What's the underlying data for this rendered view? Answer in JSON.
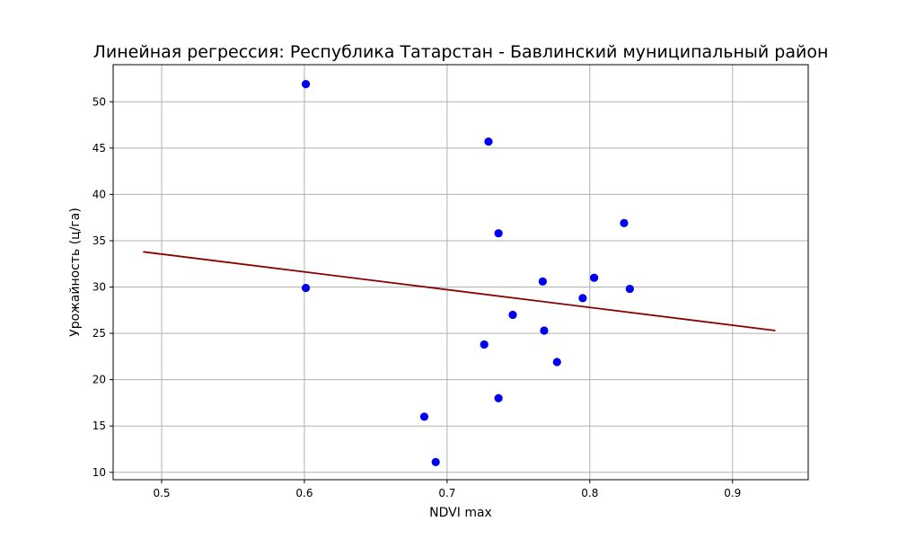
{
  "chart_data": {
    "type": "scatter",
    "title": "Линейная регрессия: Республика Татарстан - Бавлинский муниципальный район",
    "xlabel": "NDVI max",
    "ylabel": "Урожайность (ц/га)",
    "xlim": [
      0.466,
      0.953
    ],
    "ylim": [
      9.2,
      54.0
    ],
    "x_ticks": [
      0.5,
      0.6,
      0.7,
      0.8,
      0.9
    ],
    "x_tick_labels": [
      "0.5",
      "0.6",
      "0.7",
      "0.8",
      "0.9"
    ],
    "y_ticks": [
      10,
      15,
      20,
      25,
      30,
      35,
      40,
      45,
      50
    ],
    "y_tick_labels": [
      "10",
      "15",
      "20",
      "25",
      "30",
      "35",
      "40",
      "45",
      "50"
    ],
    "grid": true,
    "series": [
      {
        "type": "scatter",
        "color": "#0000ee",
        "points": [
          {
            "x": 0.601,
            "y": 51.9
          },
          {
            "x": 0.601,
            "y": 29.9
          },
          {
            "x": 0.729,
            "y": 45.7
          },
          {
            "x": 0.736,
            "y": 35.8
          },
          {
            "x": 0.824,
            "y": 36.9
          },
          {
            "x": 0.767,
            "y": 30.6
          },
          {
            "x": 0.803,
            "y": 31.0
          },
          {
            "x": 0.795,
            "y": 28.8
          },
          {
            "x": 0.828,
            "y": 29.8
          },
          {
            "x": 0.746,
            "y": 27.0
          },
          {
            "x": 0.768,
            "y": 25.3
          },
          {
            "x": 0.726,
            "y": 23.8
          },
          {
            "x": 0.777,
            "y": 21.9
          },
          {
            "x": 0.736,
            "y": 18.0
          },
          {
            "x": 0.684,
            "y": 16.0
          },
          {
            "x": 0.692,
            "y": 11.1
          }
        ]
      },
      {
        "type": "line",
        "color": "#8b0000",
        "points": [
          {
            "x": 0.487,
            "y": 33.8
          },
          {
            "x": 0.93,
            "y": 25.3
          }
        ]
      }
    ]
  }
}
